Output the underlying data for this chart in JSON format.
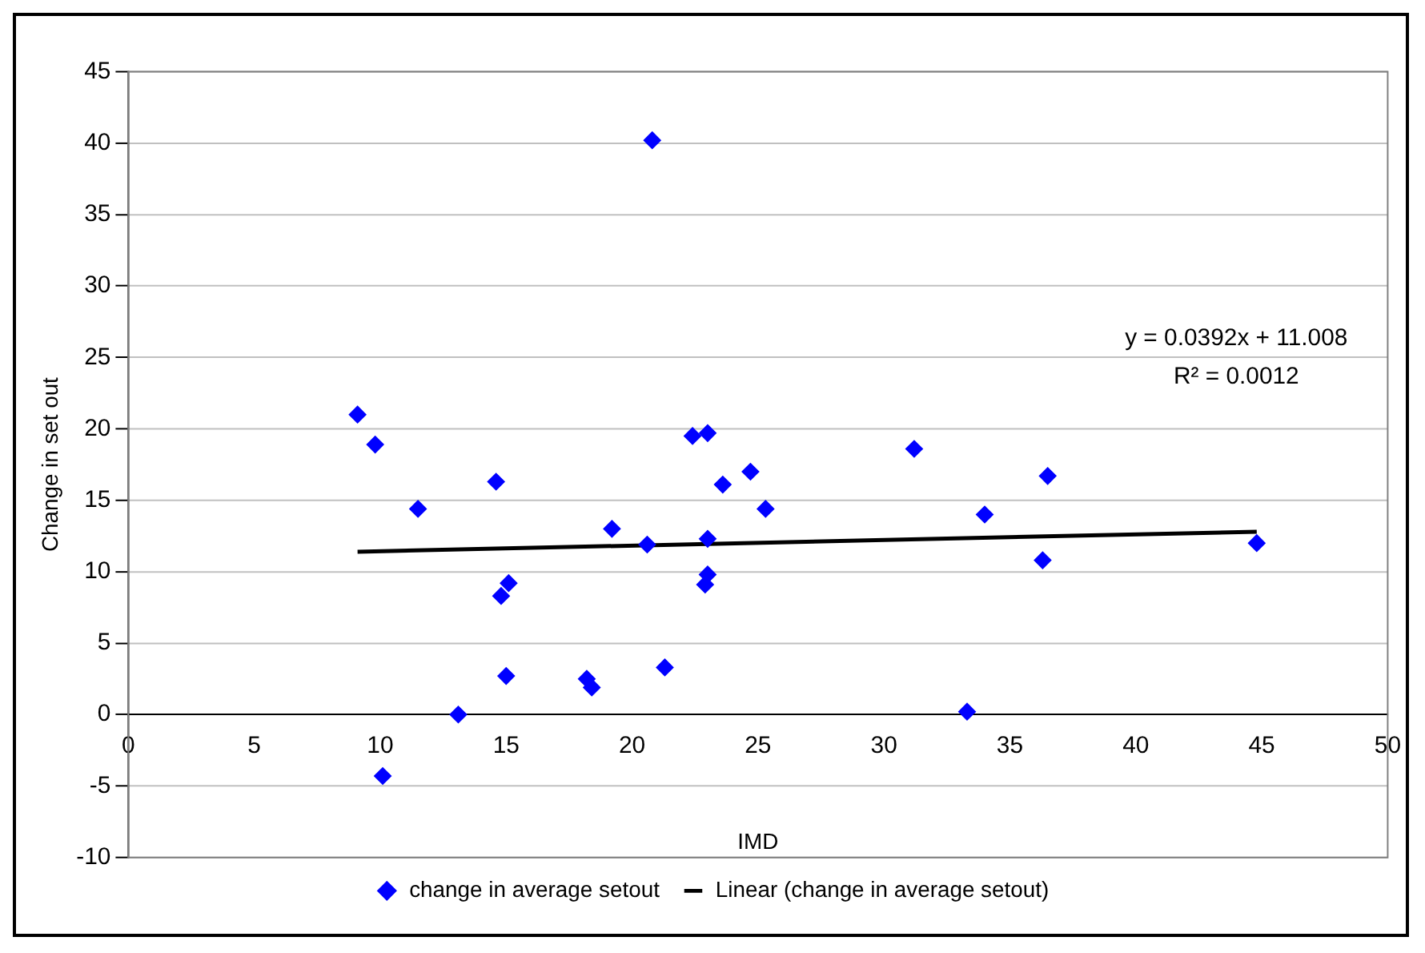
{
  "chart_data": {
    "type": "scatter",
    "xlabel": "IMD",
    "ylabel": "Change in set out",
    "xlim": [
      0,
      50
    ],
    "xticks": [
      0,
      5,
      10,
      15,
      20,
      25,
      30,
      35,
      40,
      45,
      50
    ],
    "ylim": [
      -10,
      45
    ],
    "yticks": [
      -10,
      -5,
      0,
      5,
      10,
      15,
      20,
      25,
      30,
      35,
      40,
      45
    ],
    "grid": "y",
    "legend": "bottom",
    "marker": "diamond",
    "annotations": [
      "y = 0.0392x + 11.008",
      "R² = 0.0012"
    ],
    "series": [
      {
        "name": "change in average setout",
        "type": "scatter",
        "color": "#0000ff",
        "x": [
          9.1,
          9.8,
          10.1,
          11.5,
          13.1,
          14.6,
          14.8,
          15.1,
          15.0,
          18.2,
          18.4,
          19.2,
          20.6,
          20.8,
          21.3,
          22.4,
          23.0,
          23.0,
          23.0,
          22.9,
          23.6,
          24.7,
          25.3,
          31.2,
          33.3,
          34.0,
          36.2,
          36.3,
          36.5,
          44.8
        ],
        "values": [
          21.0,
          18.9,
          -4.3,
          14.4,
          0,
          16.3,
          8.3,
          9.2,
          2.7,
          2.5,
          1.9,
          13.0,
          11.9,
          40.2,
          3.3,
          19.5,
          19.7,
          12.3,
          9.8,
          9.1,
          16.1,
          17.0,
          14.4,
          18.6,
          0.2,
          14.0,
          null,
          10.8,
          16.7,
          12.0
        ]
      },
      {
        "name": "Linear (change in average setout)",
        "type": "line",
        "color": "#000000",
        "x": [
          9.1,
          44.8
        ],
        "values": [
          11.4,
          12.8
        ],
        "marker": "none"
      }
    ]
  }
}
